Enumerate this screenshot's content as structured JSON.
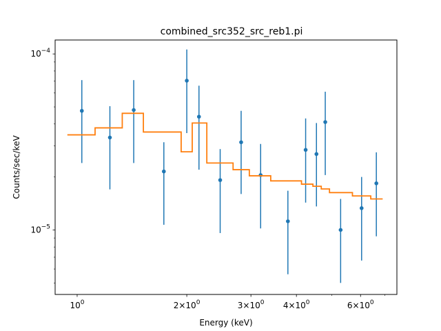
{
  "chart_data": {
    "type": "scatter",
    "title": "combined_src352_src_reb1.pi",
    "xlabel": "Energy (keV)",
    "ylabel": "Counts/sec/keV",
    "x_scale": "log",
    "y_scale": "log",
    "xlim": [
      0.87,
      7.55
    ],
    "ylim": [
      4.3e-06,
      0.00012
    ],
    "x_ticks": [
      {
        "value": 1,
        "label": "10^0"
      },
      {
        "value": 2,
        "label": "2×10^0"
      },
      {
        "value": 3,
        "label": "3×10^0"
      },
      {
        "value": 4,
        "label": "4×10^0"
      },
      {
        "value": 6,
        "label": "6×10^0"
      }
    ],
    "x_minor_ticks": [
      5,
      7
    ],
    "y_ticks": [
      {
        "value": 1e-05,
        "label": "10^−5"
      },
      {
        "value": 0.0001,
        "label": "10^−4"
      }
    ],
    "y_minor_ticks": [
      5e-06,
      6e-06,
      7e-06,
      8e-06,
      9e-06,
      2e-05,
      3e-05,
      4e-05,
      5e-05,
      6e-05,
      7e-05,
      8e-05,
      9e-05
    ],
    "grid": false,
    "series": [
      {
        "type": "errorbar",
        "color": "#1f77b4",
        "points": [
          {
            "x": 1.03,
            "y": 4.75e-05,
            "ylo": 2.4e-05,
            "yhi": 7.1e-05
          },
          {
            "x": 1.23,
            "y": 3.35e-05,
            "ylo": 1.7e-05,
            "yhi": 5.05e-05
          },
          {
            "x": 1.43,
            "y": 4.8e-05,
            "ylo": 2.4e-05,
            "yhi": 7.1e-05
          },
          {
            "x": 1.73,
            "y": 2.15e-05,
            "ylo": 1.07e-05,
            "yhi": 3.15e-05
          },
          {
            "x": 2.0,
            "y": 7.05e-05,
            "ylo": 3.55e-05,
            "yhi": 0.000106
          },
          {
            "x": 2.16,
            "y": 4.4e-05,
            "ylo": 2.2e-05,
            "yhi": 6.6e-05
          },
          {
            "x": 2.47,
            "y": 1.92e-05,
            "ylo": 9.6e-06,
            "yhi": 2.88e-05
          },
          {
            "x": 2.82,
            "y": 3.15e-05,
            "ylo": 1.6e-05,
            "yhi": 4.75e-05
          },
          {
            "x": 3.19,
            "y": 2.05e-05,
            "ylo": 1.02e-05,
            "yhi": 3.08e-05
          },
          {
            "x": 3.79,
            "y": 1.12e-05,
            "ylo": 5.6e-06,
            "yhi": 1.67e-05
          },
          {
            "x": 4.24,
            "y": 2.85e-05,
            "ylo": 1.43e-05,
            "yhi": 4.3e-05
          },
          {
            "x": 4.54,
            "y": 2.7e-05,
            "ylo": 1.36e-05,
            "yhi": 4.05e-05
          },
          {
            "x": 4.8,
            "y": 4.1e-05,
            "ylo": 2.05e-05,
            "yhi": 6.1e-05
          },
          {
            "x": 5.29,
            "y": 1e-05,
            "ylo": 5e-06,
            "yhi": 1.5e-05
          },
          {
            "x": 6.04,
            "y": 1.33e-05,
            "ylo": 6.7e-06,
            "yhi": 2e-05
          },
          {
            "x": 6.63,
            "y": 1.84e-05,
            "ylo": 9.2e-06,
            "yhi": 2.76e-05
          }
        ]
      },
      {
        "type": "step",
        "color": "#ff7f0e",
        "segments": [
          {
            "x0": 0.94,
            "x1": 1.12,
            "y": 3.47e-05
          },
          {
            "x0": 1.12,
            "x1": 1.33,
            "y": 3.8e-05
          },
          {
            "x0": 1.33,
            "x1": 1.52,
            "y": 4.6e-05
          },
          {
            "x0": 1.52,
            "x1": 1.93,
            "y": 3.6e-05
          },
          {
            "x0": 1.93,
            "x1": 2.07,
            "y": 2.78e-05
          },
          {
            "x0": 2.07,
            "x1": 2.27,
            "y": 4.05e-05
          },
          {
            "x0": 2.27,
            "x1": 2.68,
            "y": 2.4e-05
          },
          {
            "x0": 2.68,
            "x1": 2.97,
            "y": 2.2e-05
          },
          {
            "x0": 2.97,
            "x1": 3.4,
            "y": 2.03e-05
          },
          {
            "x0": 3.4,
            "x1": 4.13,
            "y": 1.9e-05
          },
          {
            "x0": 4.13,
            "x1": 4.44,
            "y": 1.82e-05
          },
          {
            "x0": 4.44,
            "x1": 4.68,
            "y": 1.77e-05
          },
          {
            "x0": 4.68,
            "x1": 4.93,
            "y": 1.71e-05
          },
          {
            "x0": 4.93,
            "x1": 5.7,
            "y": 1.63e-05
          },
          {
            "x0": 5.7,
            "x1": 6.4,
            "y": 1.56e-05
          },
          {
            "x0": 6.4,
            "x1": 6.9,
            "y": 1.5e-05
          }
        ]
      }
    ]
  }
}
